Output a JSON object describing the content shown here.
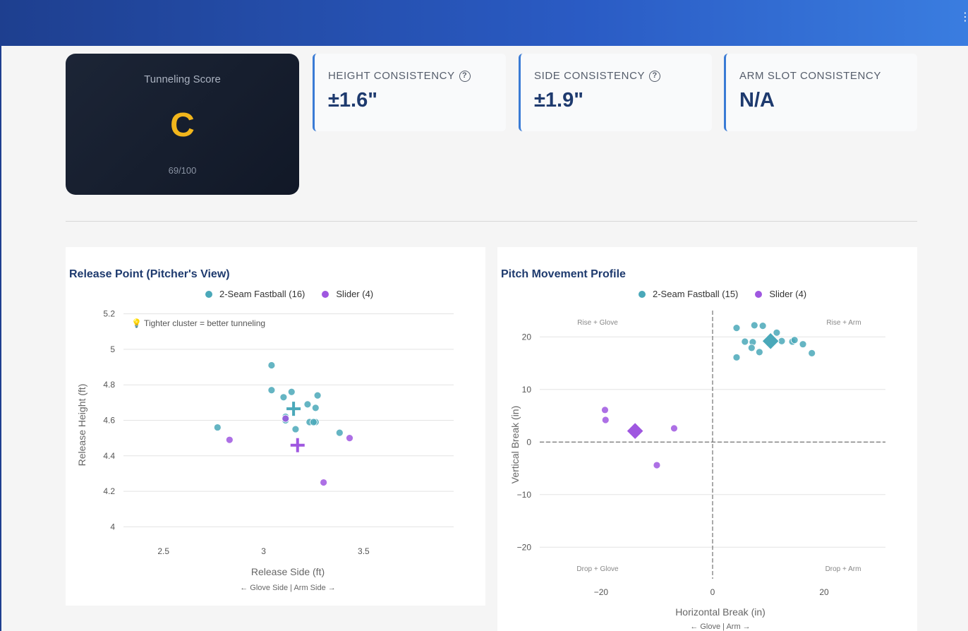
{
  "score_card": {
    "title": "Tunneling Score",
    "grade": "C",
    "subtitle": "69/100"
  },
  "metrics": [
    {
      "label": "HEIGHT CONSISTENCY",
      "value": "±1.6\"",
      "help": "?"
    },
    {
      "label": "SIDE CONSISTENCY",
      "value": "±1.9\"",
      "help": "?"
    },
    {
      "label": "ARM SLOT CONSISTENCY",
      "value": "N/A"
    }
  ],
  "colors": {
    "fastball": "#4aa8b9",
    "slider": "#9f57e0",
    "accent": "#3a7bd5",
    "grade": "#f2b61c"
  },
  "release_chart": {
    "title": "Release Point (Pitcher's View)",
    "legend": [
      "2-Seam Fastball (16)",
      "Slider (4)"
    ],
    "annotation": "💡 Tighter cluster = better tunneling",
    "xlabel": "Release Side (ft)",
    "xsublabel": "← Glove Side | Arm Side →",
    "ylabel": "Release Height (ft)"
  },
  "movement_chart": {
    "title": "Pitch Movement Profile",
    "legend": [
      "2-Seam Fastball (15)",
      "Slider (4)"
    ],
    "xlabel": "Horizontal Break (in)",
    "xsublabel": "← Glove | Arm →",
    "ylabel": "Vertical Break (in)",
    "quadrants": {
      "top_left": "Rise + Glove",
      "top_right": "Rise + Arm",
      "bottom_left": "Drop + Glove",
      "bottom_right": "Drop + Arm"
    }
  },
  "chart_data": [
    {
      "type": "scatter",
      "title": "Release Point (Pitcher's View)",
      "xlabel": "Release Side (ft)",
      "ylabel": "Release Height (ft)",
      "xlim": [
        2.3,
        3.95
      ],
      "ylim": [
        3.95,
        5.25
      ],
      "xticks": [
        "2.5",
        "3",
        "3.5"
      ],
      "xtick_values": [
        2.5,
        3,
        3.5
      ],
      "yticks": [
        "4",
        "4.2",
        "4.4",
        "4.6",
        "4.8",
        "5",
        "5.2"
      ],
      "ytick_values": [
        4,
        4.2,
        4.4,
        4.6,
        4.8,
        5,
        5.2
      ],
      "grid": true,
      "legend_position": "top",
      "series": [
        {
          "name": "2-Seam Fastball (16)",
          "color": "#4aa8b9",
          "x": [
            2.77,
            3.04,
            3.04,
            3.1,
            3.14,
            3.11,
            3.16,
            3.22,
            3.23,
            3.26,
            3.27,
            3.26,
            3.25,
            3.38,
            3.11,
            3.11
          ],
          "y": [
            4.56,
            4.91,
            4.77,
            4.73,
            4.76,
            4.62,
            4.55,
            4.69,
            4.59,
            4.67,
            4.74,
            4.59,
            4.59,
            4.53,
            4.6,
            4.61
          ],
          "centroid": [
            3.15,
            4.665
          ]
        },
        {
          "name": "Slider (4)",
          "color": "#9f57e0",
          "x": [
            2.83,
            3.11,
            3.43,
            3.3
          ],
          "y": [
            4.49,
            4.61,
            4.5,
            4.25
          ],
          "centroid": [
            3.17,
            4.46
          ]
        }
      ]
    },
    {
      "type": "scatter",
      "title": "Pitch Movement Profile",
      "xlabel": "Horizontal Break (in)",
      "ylabel": "Vertical Break (in)",
      "xlim": [
        -31,
        31
      ],
      "ylim": [
        -26,
        25
      ],
      "xticks": [
        "−20",
        "0",
        "20"
      ],
      "xtick_values": [
        -20,
        0,
        20
      ],
      "yticks": [
        "−20",
        "−10",
        "0",
        "10",
        "20"
      ],
      "ytick_values": [
        -20,
        -10,
        0,
        10,
        20
      ],
      "grid": true,
      "legend_position": "top",
      "series": [
        {
          "name": "2-Seam Fastball (15)",
          "color": "#4aa8b9",
          "x": [
            4.3,
            7.5,
            9.0,
            5.8,
            7.2,
            7.0,
            8.4,
            11.5,
            12.4,
            14.3,
            16.2,
            17.8,
            4.3,
            10.2,
            14.7
          ],
          "y": [
            21.7,
            22.2,
            22.1,
            19.1,
            19.0,
            17.9,
            17.1,
            20.8,
            19.2,
            19.1,
            18.6,
            16.9,
            16.1,
            19.7,
            19.4
          ],
          "centroid": [
            10.4,
            19.2
          ]
        },
        {
          "name": "Slider (4)",
          "color": "#9f57e0",
          "x": [
            -19.3,
            -19.2,
            -10.0,
            -6.9
          ],
          "y": [
            6.1,
            4.2,
            -4.4,
            2.6
          ],
          "centroid": [
            -13.9,
            2.1
          ]
        }
      ]
    }
  ]
}
